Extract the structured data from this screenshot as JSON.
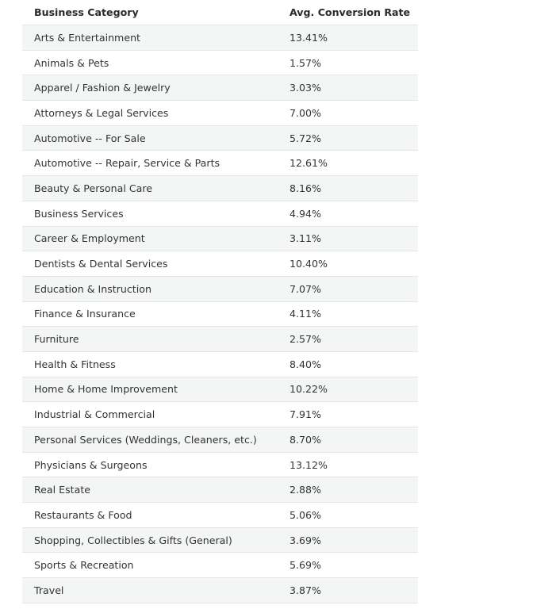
{
  "table": {
    "headers": [
      "Business Category",
      "Avg. Conversion Rate"
    ],
    "rows": [
      [
        "Arts & Entertainment",
        "13.41%"
      ],
      [
        "Animals & Pets",
        "1.57%"
      ],
      [
        "Apparel / Fashion & Jewelry",
        "3.03%"
      ],
      [
        "Attorneys & Legal Services",
        "7.00%"
      ],
      [
        "Automotive -- For Sale",
        "5.72%"
      ],
      [
        "Automotive -- Repair, Service & Parts",
        "12.61%"
      ],
      [
        "Beauty & Personal Care",
        "8.16%"
      ],
      [
        "Business Services",
        "4.94%"
      ],
      [
        "Career & Employment",
        "3.11%"
      ],
      [
        "Dentists & Dental Services",
        "10.40%"
      ],
      [
        "Education & Instruction",
        "7.07%"
      ],
      [
        "Finance & Insurance",
        "4.11%"
      ],
      [
        "Furniture",
        "2.57%"
      ],
      [
        "Health & Fitness",
        "8.40%"
      ],
      [
        "Home & Home Improvement",
        "10.22%"
      ],
      [
        "Industrial & Commercial",
        "7.91%"
      ],
      [
        "Personal Services (Weddings, Cleaners, etc.)",
        "8.70%"
      ],
      [
        "Physicians & Surgeons",
        "13.12%"
      ],
      [
        "Real Estate",
        "2.88%"
      ],
      [
        "Restaurants & Food",
        "5.06%"
      ],
      [
        "Shopping, Collectibles & Gifts (General)",
        "3.69%"
      ],
      [
        "Sports & Recreation",
        "5.69%"
      ],
      [
        "Travel",
        "3.87%"
      ]
    ]
  },
  "colors": {
    "stripe": "#f4f5f5",
    "border": "#e3e5e6",
    "text": "#333333"
  }
}
